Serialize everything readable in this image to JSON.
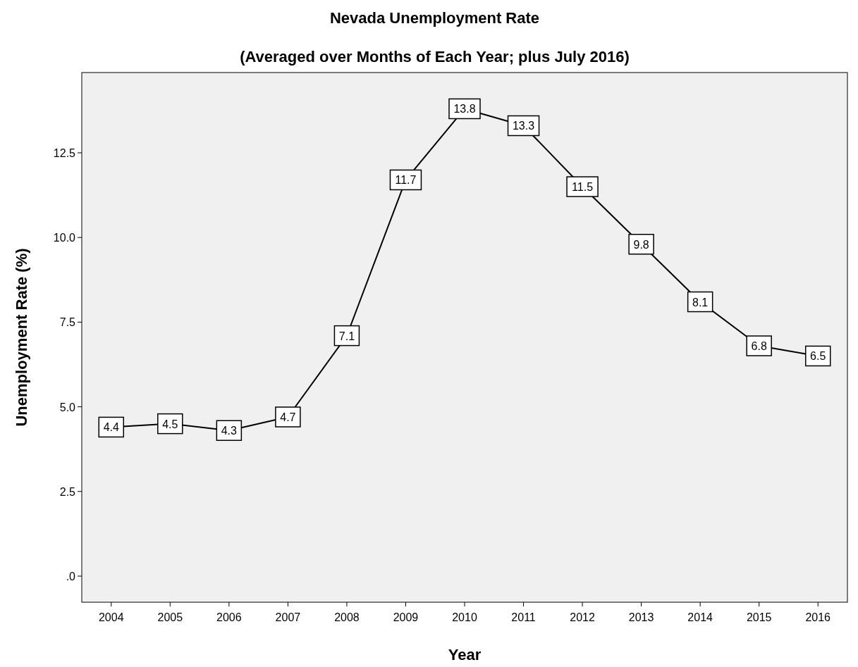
{
  "chart_data": {
    "type": "line",
    "title": "Nevada Unemployment Rate",
    "subtitle": "(Averaged over Months of Each Year; plus July 2016)",
    "xlabel": "Year",
    "ylabel": "Unemployment Rate (%)",
    "categories": [
      "2004",
      "2005",
      "2006",
      "2007",
      "2008",
      "2009",
      "2010",
      "2011",
      "2012",
      "2013",
      "2014",
      "2015",
      "2016"
    ],
    "series": [
      {
        "color": "#000000",
        "values": [
          4.4,
          4.5,
          4.3,
          4.7,
          7.1,
          11.7,
          13.8,
          13.3,
          11.5,
          9.8,
          8.1,
          6.8,
          6.5
        ]
      }
    ],
    "ylim": [
      -0.77,
      14.87
    ],
    "yticks": [
      {
        "value": 0,
        "label": ".0"
      },
      {
        "value": 2.5,
        "label": "2.5"
      },
      {
        "value": 5,
        "label": "5.0"
      },
      {
        "value": 7.5,
        "label": "7.5"
      },
      {
        "value": 10,
        "label": "10.0"
      },
      {
        "value": 12.5,
        "label": "12.5"
      }
    ],
    "data_labels": true,
    "grid": false,
    "marker": "square",
    "line_style": "solid"
  }
}
